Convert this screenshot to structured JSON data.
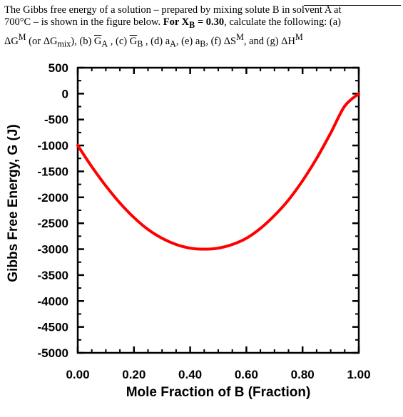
{
  "problem": {
    "line1": "The Gibbs free energy of a solution – prepared by mixing solute B in solvent A at",
    "line2_prefix": "700°C – is shown in the figure below. ",
    "line2_bold": "For X",
    "line2_bold_sub": "B",
    "line2_bold_tail": " = 0.30",
    "line2_suffix": ", calculate the following: (a)",
    "line3": {
      "a_delta_g": "ΔG",
      "a_delta_g_sup": "M",
      "a_or": " (or ΔG",
      "a_mix_sub": "mix",
      "a_close": "), (b) ",
      "b_G": "G",
      "b_sub": "A",
      "c_label": " , (c) ",
      "c_G": "G",
      "c_sub": "B",
      "d_label": " , (d) a",
      "d_sub": "A",
      "e_label": ", (e) a",
      "e_sub": "B",
      "f_label": ", (f) ΔS",
      "f_sup": "M",
      "g_label": ", and (g) ΔH",
      "g_sup": "M"
    }
  },
  "chart_data": {
    "type": "line",
    "title": "",
    "xlabel": "Mole Fraction of B (Fraction)",
    "ylabel": "Gibbs Free Energy, G (J)",
    "xlim": [
      0,
      1
    ],
    "ylim": [
      -5000,
      500
    ],
    "xticks": [
      0,
      0.2,
      0.4,
      0.6,
      0.8,
      1.0
    ],
    "xtick_labels": [
      "0.00",
      "0.20",
      "0.40",
      "0.60",
      "0.80",
      "1.00"
    ],
    "yticks": [
      500,
      0,
      -500,
      -1000,
      -1500,
      -2000,
      -2500,
      -3000,
      -3500,
      -4000,
      -4500,
      -5000
    ],
    "ytick_labels": [
      "500",
      "0",
      "-500",
      "-1000",
      "-1500",
      "-2000",
      "-2500",
      "-3000",
      "-3500",
      "-4000",
      "-4500",
      "-5000"
    ],
    "grid": false,
    "series": [
      {
        "color": "#ff0000",
        "x": [
          0.0,
          0.05,
          0.1,
          0.15,
          0.2,
          0.25,
          0.3,
          0.35,
          0.4,
          0.45,
          0.5,
          0.55,
          0.6,
          0.65,
          0.7,
          0.75,
          0.8,
          0.85,
          0.9,
          0.95,
          1.0
        ],
        "y": [
          -1000,
          -1410,
          -1780,
          -2110,
          -2390,
          -2620,
          -2790,
          -2910,
          -2980,
          -3000,
          -2980,
          -2910,
          -2790,
          -2600,
          -2350,
          -2050,
          -1680,
          -1250,
          -760,
          -240,
          0
        ]
      }
    ]
  }
}
